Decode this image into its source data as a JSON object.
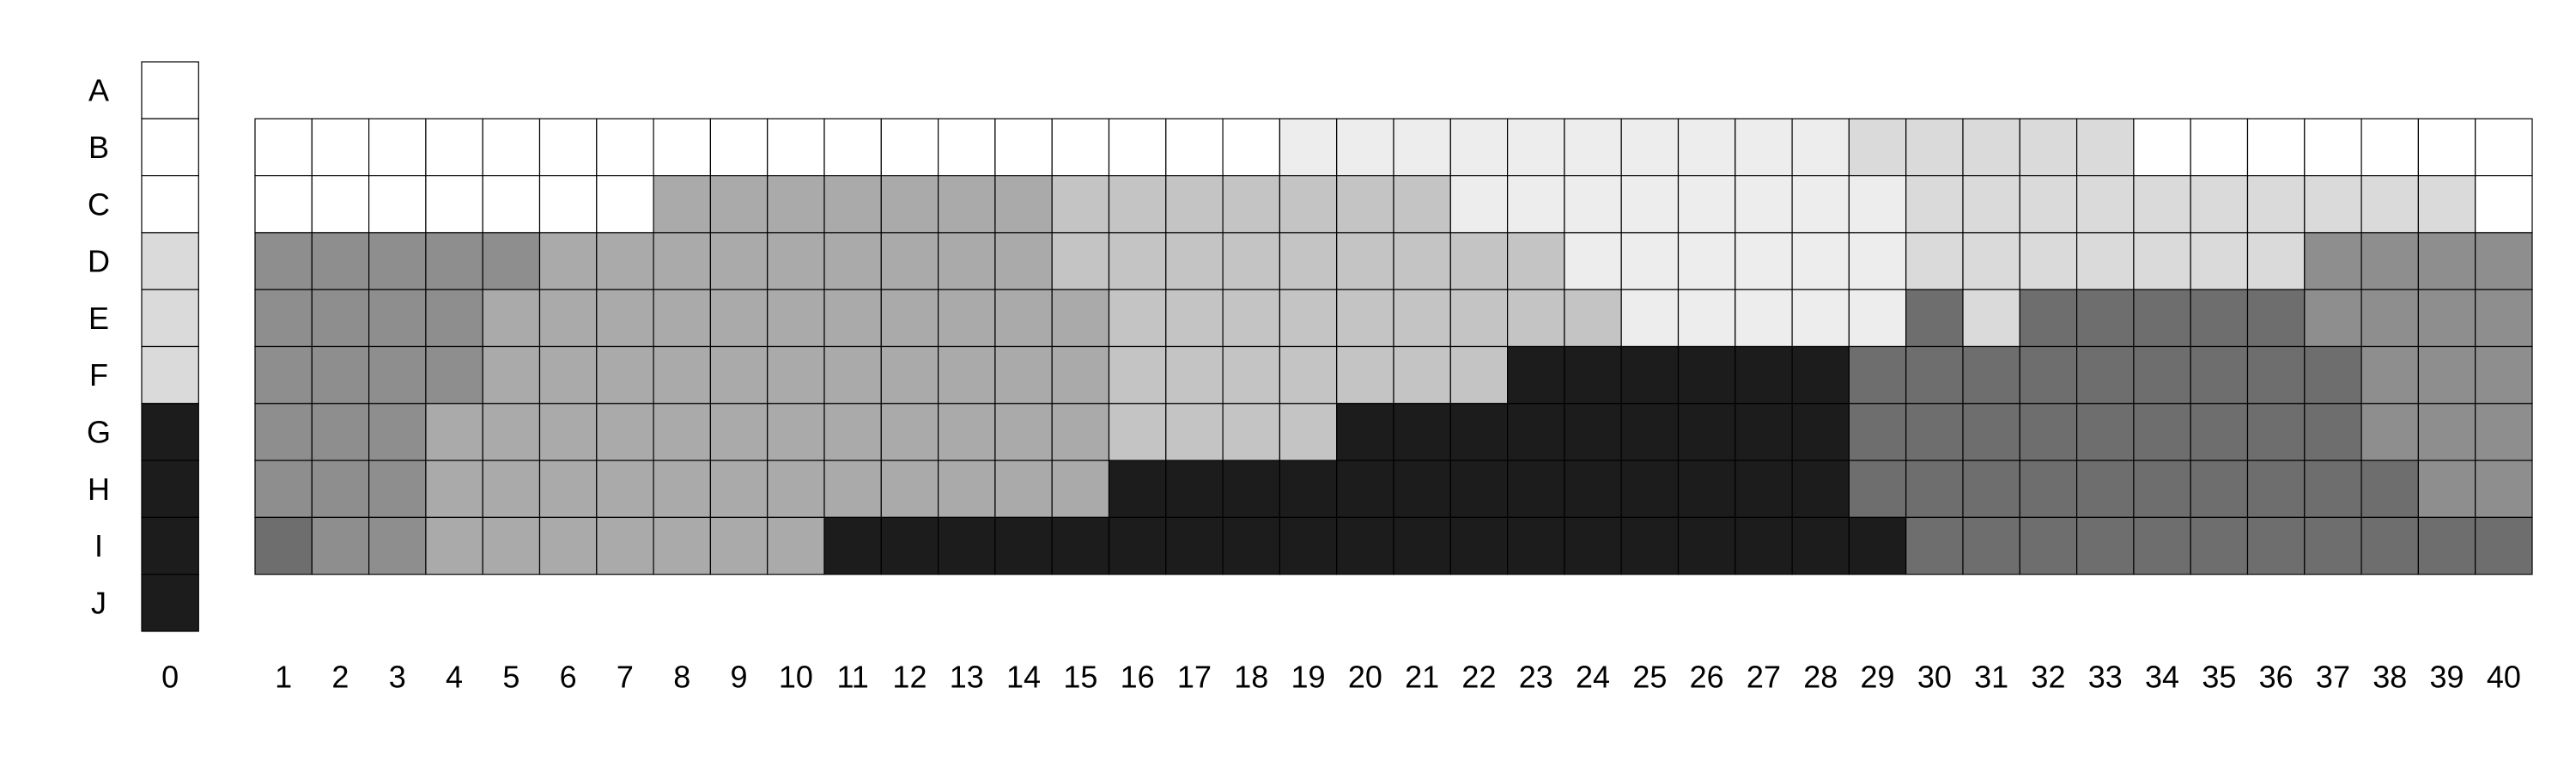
{
  "chart_data": {
    "type": "heatmap",
    "title": "",
    "xlabel": "",
    "ylabel": "",
    "grid": true,
    "colors": [
      "#ffffff",
      "#ededed",
      "#dadada",
      "#c4c4c4",
      "#aaaaaa",
      "#8e8e8e",
      "#6e6e6e",
      "#1c1c1c"
    ],
    "rows": [
      "A",
      "B",
      "C",
      "D",
      "E",
      "F",
      "G",
      "H",
      "I",
      "J"
    ],
    "legend_column": {
      "label": "0",
      "values": [
        0,
        0,
        0,
        2,
        2,
        2,
        7,
        7,
        7,
        7
      ]
    },
    "columns": [
      "1",
      "2",
      "3",
      "4",
      "5",
      "6",
      "7",
      "8",
      "9",
      "10",
      "11",
      "12",
      "13",
      "14",
      "15",
      "16",
      "17",
      "18",
      "19",
      "20",
      "21",
      "22",
      "23",
      "24",
      "25",
      "26",
      "27",
      "28",
      "29",
      "30",
      "31",
      "32",
      "33",
      "34",
      "35",
      "36",
      "37",
      "38",
      "39",
      "40"
    ],
    "grid_rows": [
      "B",
      "C",
      "D",
      "E",
      "F",
      "G",
      "H",
      "I"
    ],
    "values": [
      [
        0,
        0,
        0,
        0,
        0,
        0,
        0,
        0,
        0,
        0,
        0,
        0,
        0,
        0,
        0,
        0,
        0,
        0,
        1,
        1,
        1,
        1,
        1,
        1,
        1,
        1,
        1,
        1,
        2,
        2,
        2,
        2,
        2,
        0,
        0,
        0,
        0,
        0,
        0,
        0
      ],
      [
        0,
        0,
        0,
        0,
        0,
        0,
        0,
        4,
        4,
        4,
        4,
        4,
        4,
        4,
        3,
        3,
        3,
        3,
        3,
        3,
        3,
        1,
        1,
        1,
        1,
        1,
        1,
        1,
        1,
        2,
        2,
        2,
        2,
        2,
        2,
        2,
        2,
        2,
        2,
        0
      ],
      [
        5,
        5,
        5,
        5,
        5,
        4,
        4,
        4,
        4,
        4,
        4,
        4,
        4,
        4,
        3,
        3,
        3,
        3,
        3,
        3,
        3,
        3,
        3,
        1,
        1,
        1,
        1,
        1,
        1,
        2,
        2,
        2,
        2,
        2,
        2,
        2,
        5,
        5,
        5,
        5
      ],
      [
        5,
        5,
        5,
        5,
        4,
        4,
        4,
        4,
        4,
        4,
        4,
        4,
        4,
        4,
        4,
        3,
        3,
        3,
        3,
        3,
        3,
        3,
        3,
        3,
        1,
        1,
        1,
        1,
        1,
        6,
        2,
        6,
        6,
        6,
        6,
        6,
        5,
        5,
        5,
        5
      ],
      [
        5,
        5,
        5,
        5,
        4,
        4,
        4,
        4,
        4,
        4,
        4,
        4,
        4,
        4,
        4,
        3,
        3,
        3,
        3,
        3,
        3,
        3,
        7,
        7,
        7,
        7,
        7,
        7,
        6,
        6,
        6,
        6,
        6,
        6,
        6,
        6,
        6,
        5,
        5,
        5
      ],
      [
        5,
        5,
        5,
        4,
        4,
        4,
        4,
        4,
        4,
        4,
        4,
        4,
        4,
        4,
        4,
        3,
        3,
        3,
        3,
        7,
        7,
        7,
        7,
        7,
        7,
        7,
        7,
        7,
        6,
        6,
        6,
        6,
        6,
        6,
        6,
        6,
        6,
        5,
        5,
        5
      ],
      [
        5,
        5,
        5,
        4,
        4,
        4,
        4,
        4,
        4,
        4,
        4,
        4,
        4,
        4,
        4,
        7,
        7,
        7,
        7,
        7,
        7,
        7,
        7,
        7,
        7,
        7,
        7,
        7,
        6,
        6,
        6,
        6,
        6,
        6,
        6,
        6,
        6,
        6,
        5,
        5
      ],
      [
        6,
        5,
        5,
        4,
        4,
        4,
        4,
        4,
        4,
        4,
        7,
        7,
        7,
        7,
        7,
        7,
        7,
        7,
        7,
        7,
        7,
        7,
        7,
        7,
        7,
        7,
        7,
        7,
        7,
        6,
        6,
        6,
        6,
        6,
        6,
        6,
        6,
        6,
        6,
        6
      ]
    ]
  }
}
